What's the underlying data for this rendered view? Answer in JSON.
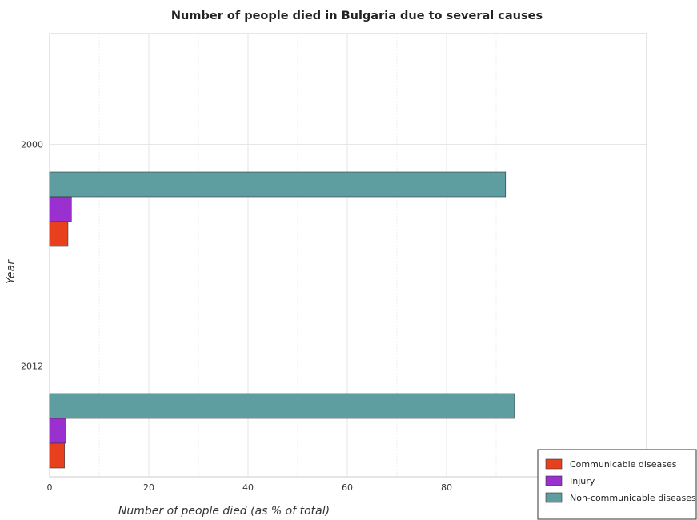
{
  "chart_data": {
    "type": "bar",
    "orientation": "horizontal",
    "title": "Number of people died in Bulgaria due to several causes",
    "xlabel": "Number of people died (as % of total)",
    "ylabel": "Year",
    "categories": [
      "2000",
      "2012"
    ],
    "series": [
      {
        "name": "Communicable diseases",
        "color": "#e8401c",
        "values": [
          3.7,
          3.0
        ]
      },
      {
        "name": "Injury",
        "color": "#9b30d0",
        "values": [
          4.4,
          3.3
        ]
      },
      {
        "name": "Non-communicable diseases",
        "color": "#5f9ea0",
        "values": [
          91.9,
          93.7
        ]
      }
    ],
    "xlim": [
      0,
      100
    ],
    "xticks": [
      0,
      20,
      40,
      60,
      80
    ],
    "grid": true,
    "legend_position": "bottom-right"
  }
}
